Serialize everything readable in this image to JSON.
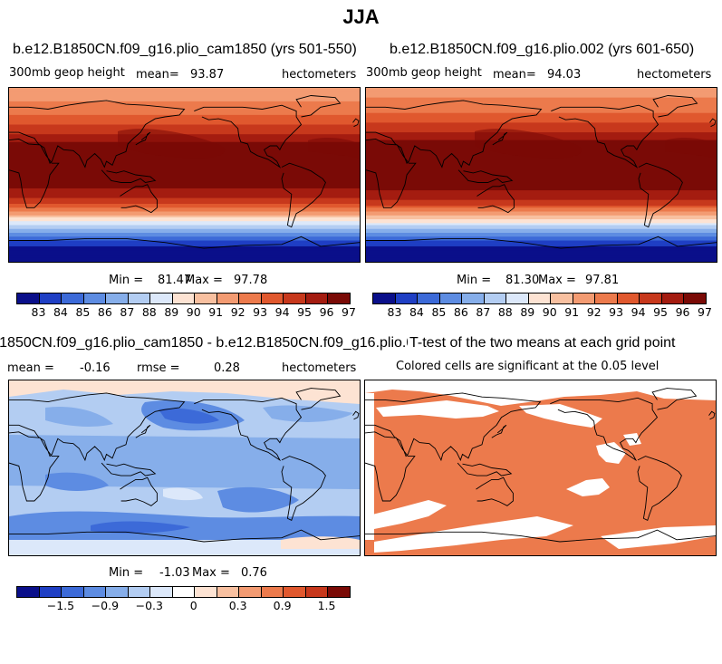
{
  "title": "JJA",
  "colors": {
    "seq": [
      "#0a0f8a",
      "#1f3fc4",
      "#3c6ad8",
      "#5d8ce2",
      "#86aeea",
      "#b3cdf2",
      "#dce8fa",
      "#fde3d3",
      "#f8c0a0",
      "#f39b72",
      "#ec7a4c",
      "#e0582e",
      "#c7381c",
      "#a41c10",
      "#7a0a06"
    ],
    "div": [
      "#0a0f8a",
      "#1f3fc4",
      "#3c6ad8",
      "#5d8ce2",
      "#86aeea",
      "#b3cdf2",
      "#dce8fa",
      "#ffffff",
      "#fde3d3",
      "#f8c0a0",
      "#f39b72",
      "#ec7a4c",
      "#e0582e",
      "#c7381c",
      "#7a0a06"
    ],
    "sig": "#ec7a4c"
  },
  "panels": [
    {
      "title": "b.e12.B1850CN.f09_g16.plio_cam1850 (yrs 501-550)",
      "variable": "300mb geop height",
      "mean_label": "mean=",
      "mean_value": "93.87",
      "units": "hectometers",
      "min_label": "Min =",
      "min_value": "81.47",
      "max_label": "Max =",
      "max_value": "97.78",
      "colorbar_ticks": [
        "83",
        "84",
        "85",
        "86",
        "87",
        "88",
        "89",
        "90",
        "91",
        "92",
        "93",
        "94",
        "95",
        "96",
        "97"
      ]
    },
    {
      "title": "b.e12.B1850CN.f09_g16.plio.002 (yrs 601-650)",
      "variable": "300mb geop height",
      "mean_label": "mean=",
      "mean_value": "94.03",
      "units": "hectometers",
      "min_label": "Min =",
      "min_value": "81.30",
      "max_label": "Max =",
      "max_value": "97.81",
      "colorbar_ticks": [
        "83",
        "84",
        "85",
        "86",
        "87",
        "88",
        "89",
        "90",
        "91",
        "92",
        "93",
        "94",
        "95",
        "96",
        "97"
      ]
    },
    {
      "title": "b.e12.B1850CN.f09_g16.plio_cam1850 - b.e12.B1850CN.f09_g16.plio.002",
      "mean_label": "mean =",
      "mean_value": "-0.16",
      "rmse_label": "rmse =",
      "rmse_value": "0.28",
      "units": "hectometers",
      "min_label": "Min =",
      "min_value": "-1.03",
      "max_label": "Max =",
      "max_value": "0.76",
      "colorbar_ticks": [
        "-1.5",
        "-0.9",
        "-0.3",
        "0",
        "0.3",
        "0.9",
        "1.5"
      ]
    },
    {
      "title": "T-test of the two means at each grid point",
      "subtitle": "Colored cells are significant at the 0.05 level"
    }
  ],
  "chart_data": [
    {
      "type": "heatmap",
      "title": "b.e12.B1850CN.f09_g16.plio_cam1850 (yrs 501-550)",
      "variable": "300mb geop height",
      "units": "hectometers",
      "mean": 93.87,
      "min": 81.47,
      "max": 97.78,
      "levels": [
        83,
        84,
        85,
        86,
        87,
        88,
        89,
        90,
        91,
        92,
        93,
        94,
        95,
        96,
        97
      ],
      "zonal_profile": [
        {
          "lat": 90,
          "value": 91.4
        },
        {
          "lat": 80,
          "value": 91.8
        },
        {
          "lat": 70,
          "value": 92.3
        },
        {
          "lat": 60,
          "value": 93.2
        },
        {
          "lat": 50,
          "value": 94.2
        },
        {
          "lat": 40,
          "value": 95.4
        },
        {
          "lat": 30,
          "value": 96.6
        },
        {
          "lat": 20,
          "value": 97.2
        },
        {
          "lat": 10,
          "value": 97.0
        },
        {
          "lat": 0,
          "value": 96.6
        },
        {
          "lat": -10,
          "value": 96.2
        },
        {
          "lat": -20,
          "value": 95.5
        },
        {
          "lat": -30,
          "value": 93.8
        },
        {
          "lat": -40,
          "value": 91.0
        },
        {
          "lat": -50,
          "value": 88.2
        },
        {
          "lat": -60,
          "value": 85.5
        },
        {
          "lat": -70,
          "value": 83.2
        },
        {
          "lat": -80,
          "value": 82.2
        },
        {
          "lat": -90,
          "value": 82.0
        }
      ]
    },
    {
      "type": "heatmap",
      "title": "b.e12.B1850CN.f09_g16.plio.002 (yrs 601-650)",
      "variable": "300mb geop height",
      "units": "hectometers",
      "mean": 94.03,
      "min": 81.3,
      "max": 97.81,
      "levels": [
        83,
        84,
        85,
        86,
        87,
        88,
        89,
        90,
        91,
        92,
        93,
        94,
        95,
        96,
        97
      ],
      "zonal_profile": [
        {
          "lat": 90,
          "value": 91.6
        },
        {
          "lat": 80,
          "value": 92.0
        },
        {
          "lat": 70,
          "value": 92.5
        },
        {
          "lat": 60,
          "value": 93.4
        },
        {
          "lat": 50,
          "value": 94.4
        },
        {
          "lat": 40,
          "value": 95.6
        },
        {
          "lat": 30,
          "value": 96.8
        },
        {
          "lat": 20,
          "value": 97.3
        },
        {
          "lat": 10,
          "value": 97.1
        },
        {
          "lat": 0,
          "value": 96.8
        },
        {
          "lat": -10,
          "value": 96.4
        },
        {
          "lat": -20,
          "value": 95.7
        },
        {
          "lat": -30,
          "value": 94.1
        },
        {
          "lat": -40,
          "value": 91.3
        },
        {
          "lat": -50,
          "value": 88.5
        },
        {
          "lat": -60,
          "value": 85.8
        },
        {
          "lat": -70,
          "value": 83.4
        },
        {
          "lat": -80,
          "value": 82.3
        },
        {
          "lat": -90,
          "value": 82.1
        }
      ]
    },
    {
      "type": "heatmap",
      "title": "b.e12.B1850CN.f09_g16.plio_cam1850 - b.e12.B1850CN.f09_g16.plio.002",
      "units": "hectometers",
      "mean": -0.16,
      "rmse": 0.28,
      "min": -1.03,
      "max": 0.76,
      "levels": [
        -2.1,
        -1.8,
        -1.5,
        -1.2,
        -0.9,
        -0.6,
        -0.3,
        0,
        0.3,
        0.6,
        0.9,
        1.2,
        1.5,
        1.8
      ],
      "zonal_profile": [
        {
          "lat": 90,
          "value": 0.1
        },
        {
          "lat": 70,
          "value": 0.0
        },
        {
          "lat": 50,
          "value": -0.5
        },
        {
          "lat": 30,
          "value": -0.3
        },
        {
          "lat": 10,
          "value": -0.2
        },
        {
          "lat": -10,
          "value": -0.2
        },
        {
          "lat": -30,
          "value": -0.3
        },
        {
          "lat": -50,
          "value": -0.4
        },
        {
          "lat": -70,
          "value": -0.1
        },
        {
          "lat": -90,
          "value": 0.0
        }
      ]
    },
    {
      "type": "heatmap",
      "title": "T-test of the two means at each grid point",
      "subtitle": "Colored cells are significant at the 0.05 level",
      "significance_level": 0.05
    }
  ]
}
